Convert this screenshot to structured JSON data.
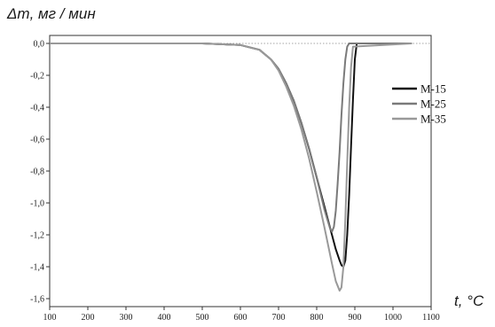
{
  "chart_data": {
    "type": "line",
    "title": "",
    "ylabel": "Δm, мг / мин",
    "xlabel": "t, °C",
    "xlim": [
      100,
      1100
    ],
    "ylim": [
      -1.65,
      0.05
    ],
    "x_ticks": [
      100,
      200,
      300,
      400,
      500,
      600,
      700,
      800,
      900,
      1000,
      1100
    ],
    "y_ticks": [
      0.0,
      -0.2,
      -0.4,
      -0.6,
      -0.8,
      -1.0,
      -1.2,
      -1.4,
      -1.6
    ],
    "y_tick_labels": [
      "0,0",
      "-0,2",
      "-0,4",
      "-0,6",
      "-0,8",
      "-1,0",
      "-1,2",
      "-1,4",
      "-1,6"
    ],
    "grid": false,
    "baseline_dotted": true,
    "legend_position": "right",
    "series": [
      {
        "name": "M-15",
        "color": "#111111",
        "x": [
          100,
          300,
          500,
          600,
          650,
          680,
          700,
          720,
          740,
          760,
          780,
          800,
          820,
          840,
          850,
          860,
          865,
          870,
          875,
          880,
          885,
          890,
          895,
          900,
          905,
          1050
        ],
        "y": [
          0.0,
          0.0,
          0.0,
          -0.01,
          -0.04,
          -0.1,
          -0.16,
          -0.25,
          -0.36,
          -0.5,
          -0.66,
          -0.84,
          -1.02,
          -1.2,
          -1.29,
          -1.36,
          -1.39,
          -1.4,
          -1.36,
          -1.2,
          -0.95,
          -0.65,
          -0.35,
          -0.1,
          0.0,
          0.0
        ]
      },
      {
        "name": "M-25",
        "color": "#7a7a7a",
        "x": [
          100,
          300,
          500,
          600,
          650,
          680,
          700,
          720,
          740,
          760,
          780,
          800,
          820,
          835,
          840,
          845,
          850,
          855,
          860,
          865,
          870,
          875,
          880,
          885,
          1050
        ],
        "y": [
          0.0,
          0.0,
          0.0,
          -0.01,
          -0.04,
          -0.1,
          -0.16,
          -0.25,
          -0.36,
          -0.5,
          -0.66,
          -0.84,
          -1.04,
          -1.16,
          -1.18,
          -1.15,
          -1.05,
          -0.88,
          -0.68,
          -0.45,
          -0.25,
          -0.1,
          -0.02,
          0.0,
          0.0
        ]
      },
      {
        "name": "M-35",
        "color": "#999999",
        "x": [
          100,
          300,
          500,
          600,
          650,
          680,
          700,
          720,
          740,
          760,
          780,
          800,
          820,
          840,
          850,
          860,
          865,
          870,
          875,
          880,
          885,
          890,
          895,
          1050
        ],
        "y": [
          0.0,
          0.0,
          0.0,
          -0.01,
          -0.04,
          -0.1,
          -0.17,
          -0.27,
          -0.39,
          -0.54,
          -0.72,
          -0.93,
          -1.15,
          -1.38,
          -1.49,
          -1.55,
          -1.53,
          -1.4,
          -1.1,
          -0.75,
          -0.4,
          -0.15,
          -0.02,
          0.0
        ]
      }
    ]
  }
}
